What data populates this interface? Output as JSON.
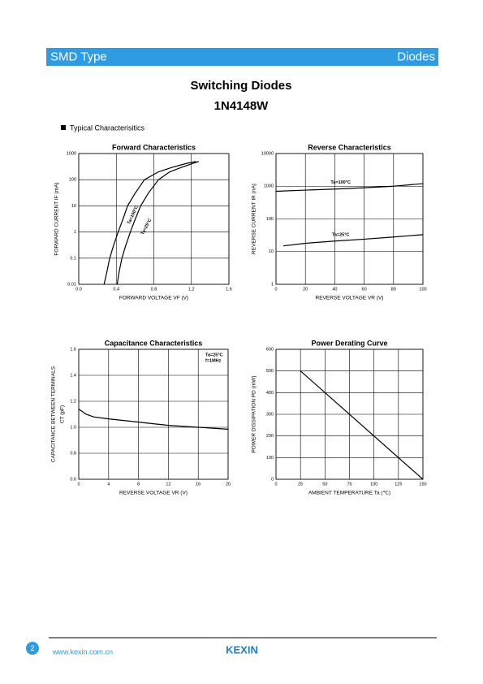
{
  "header": {
    "left": "SMD Type",
    "right": "Diodes"
  },
  "title": "Switching Diodes",
  "part": "1N4148W",
  "section": "Typical  Characterisitics",
  "chart_data": [
    {
      "type": "line",
      "title": "Forward    Characteristics",
      "x_label": "FORWARD VOLTAGE   VF   (V)",
      "y_label": [
        "FORWARD CURRENT   IF   (mA)"
      ],
      "xlim": [
        0,
        1.6
      ],
      "ylim": [
        0.01,
        1000
      ],
      "log_y": true,
      "grid": true,
      "xticks": [
        {
          "value": 0,
          "label": "0.0"
        },
        0.4,
        0.8,
        1.2,
        1.6
      ],
      "yticks": [
        0.01,
        0.1,
        1,
        10,
        100,
        1000
      ],
      "series": [
        {
          "name": "Ta=100°C",
          "color": "#000000",
          "x": [
            0.27,
            0.3,
            0.33,
            0.37,
            0.42,
            0.47,
            0.52,
            0.6,
            0.7,
            0.85,
            1.0,
            1.15,
            1.25
          ],
          "values": [
            0.01,
            0.03,
            0.1,
            0.3,
            1,
            3,
            10,
            30,
            100,
            200,
            300,
            420,
            500
          ]
        },
        {
          "name": "Ta=25°C",
          "color": "#000000",
          "x": [
            0.41,
            0.43,
            0.46,
            0.5,
            0.55,
            0.6,
            0.66,
            0.74,
            0.85,
            0.97,
            1.1,
            1.2,
            1.28
          ],
          "values": [
            0.01,
            0.03,
            0.1,
            0.3,
            1,
            3,
            10,
            30,
            100,
            200,
            300,
            400,
            500
          ]
        }
      ]
    },
    {
      "type": "line",
      "title": "Reverse    Characteristics",
      "x_label": "REVERSE VOLTAGE   VR   (V)",
      "y_label": [
        "REVERSE CURRENT   IR   (nA)"
      ],
      "xlim": [
        0,
        100
      ],
      "ylim": [
        1,
        10000
      ],
      "log_y": true,
      "grid": true,
      "xticks": [
        0,
        20,
        40,
        60,
        80,
        100
      ],
      "yticks": [
        1,
        10,
        100,
        1000,
        10000
      ],
      "series": [
        {
          "name": "Ta=100°C",
          "color": "#000000",
          "x": [
            0,
            20,
            40,
            60,
            80,
            100
          ],
          "values": [
            700,
            760,
            820,
            900,
            1000,
            1200
          ]
        },
        {
          "name": "Ta=25°C",
          "color": "#000000",
          "x": [
            5,
            20,
            40,
            60,
            80,
            100
          ],
          "values": [
            15,
            18,
            21,
            24,
            28,
            33
          ]
        }
      ]
    },
    {
      "type": "line",
      "title": "Capacitance Characteristics",
      "x_label": "REVERSE VOLTAGE   VR   (V)",
      "y_label": [
        "CAPACITANCE BETWEEN TERMINALS",
        "CT   (pF)"
      ],
      "xlim": [
        0,
        20
      ],
      "ylim": [
        0.6,
        1.6
      ],
      "grid": true,
      "xticks": [
        0,
        4,
        8,
        12,
        16,
        20
      ],
      "yticks": [
        0.6,
        0.8,
        {
          "value": 1,
          "label": "1.0"
        },
        1.2,
        1.4,
        1.6
      ],
      "annotations": [
        "Ta=25°C",
        "f=1MHz"
      ],
      "series": [
        {
          "color": "#000000",
          "x": [
            0,
            1,
            2,
            4,
            8,
            12,
            16,
            20
          ],
          "values": [
            1.14,
            1.1,
            1.08,
            1.065,
            1.04,
            1.015,
            1.0,
            0.985
          ]
        }
      ]
    },
    {
      "type": "line",
      "title": "Power Derating Curve",
      "x_label": "AMBIENT TEMPERATURE   Ta   (℃)",
      "y_label": [
        "POWER DISSIPATION   PD   (mW)"
      ],
      "xlim": [
        0,
        150
      ],
      "ylim": [
        0,
        600
      ],
      "grid": true,
      "xticks": [
        0,
        25,
        50,
        75,
        100,
        125,
        150
      ],
      "yticks": [
        0,
        100,
        200,
        300,
        400,
        500,
        600
      ],
      "series": [
        {
          "color": "#000000",
          "x": [
            25,
            150
          ],
          "values": [
            500,
            0
          ]
        }
      ]
    }
  ],
  "footer": {
    "page": "2",
    "url": "www.kexin.com.cn",
    "logo": "KEXIN"
  }
}
